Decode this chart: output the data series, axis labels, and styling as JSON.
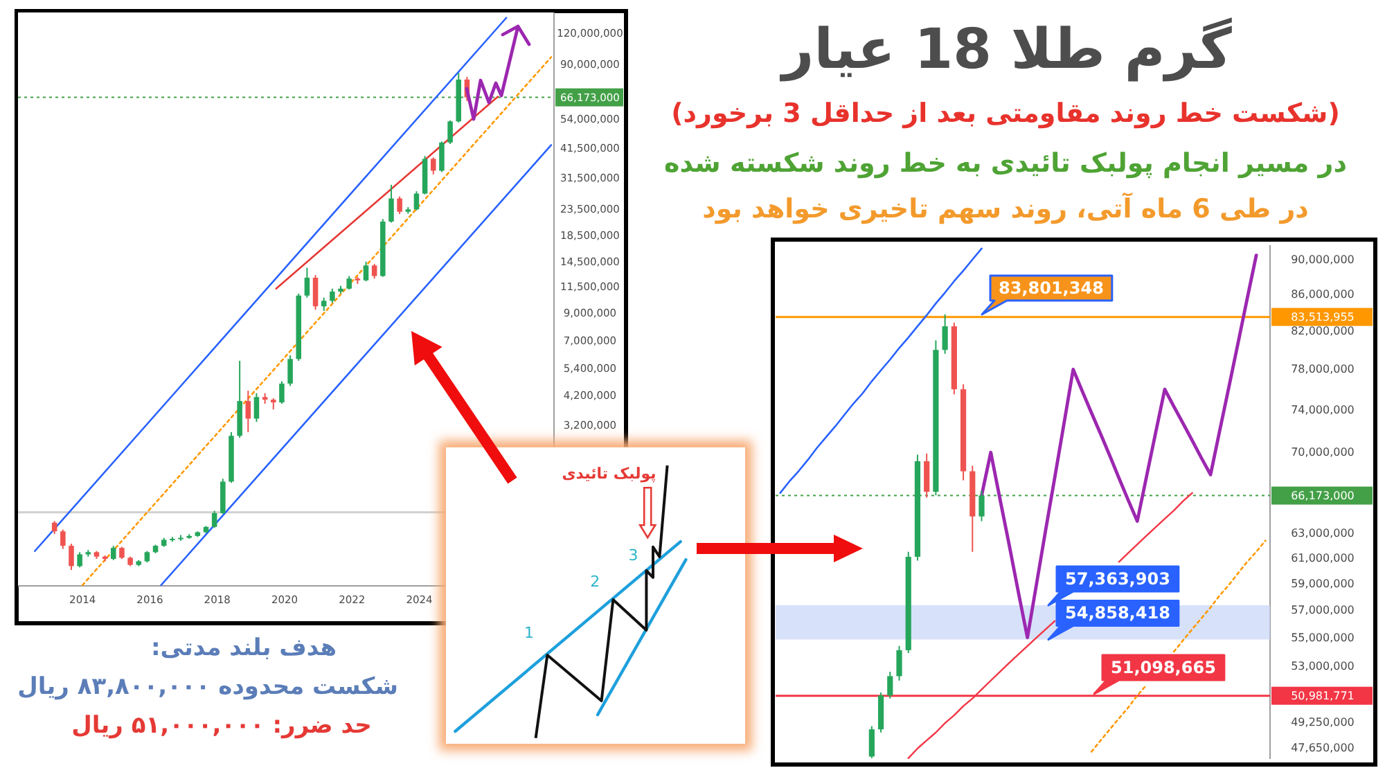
{
  "chart_data": [
    {
      "type": "other",
      "title": "گرم طلا 18 عیار",
      "subtitle": "(شکست خط روند مقاومتی بعد از حداقل 3 برخورد)",
      "annotations": [
        "در مسیر انجام پولبک تائیدی به خط روند شکسته شده",
        "در طی 6 ماه آتی، روند سهم تاخیری خواهد بود",
        "هدف بلند مدتی:",
        "شکست محدوده ۸۳,۸۰۰,۰۰۰ ریال",
        "حد ضرر: ۵۱,۰۰۰,۰۰۰ ریال"
      ]
    },
    {
      "type": "candlestick",
      "log": true,
      "xlim": [
        "2012-02",
        "2028-01"
      ],
      "ylim": [
        725000,
        145000000
      ],
      "xticks": [
        "2014",
        "2016",
        "2018",
        "2020",
        "2022",
        "2024"
      ],
      "yticks": [
        {
          "value": 3200000,
          "label": "3,200,000"
        },
        {
          "value": 4200000,
          "label": "4,200,000"
        },
        {
          "value": 5400000,
          "label": "5,400,000"
        },
        {
          "value": 7000000,
          "label": "7,000,000"
        },
        {
          "value": 9000000,
          "label": "9,000,000"
        },
        {
          "value": 11500000,
          "label": "11,500,000"
        },
        {
          "value": 14500000,
          "label": "14,500,000"
        },
        {
          "value": 18500000,
          "label": "18,500,000"
        },
        {
          "value": 23500000,
          "label": "23,500,000"
        },
        {
          "value": 31500000,
          "label": "31,500,000"
        },
        {
          "value": 41500000,
          "label": "41,500,000"
        },
        {
          "value": 54000000,
          "label": "54,000,000"
        },
        {
          "value": 90000000,
          "label": "90,000,000"
        },
        {
          "value": 120000000,
          "label": "120,000,000"
        }
      ],
      "x": [
        "2013-03",
        "2013-06",
        "2013-09",
        "2013-12",
        "2014-03",
        "2014-06",
        "2014-09",
        "2014-12",
        "2015-03",
        "2015-06",
        "2015-09",
        "2015-12",
        "2016-03",
        "2016-06",
        "2016-09",
        "2016-12",
        "2017-03",
        "2017-06",
        "2017-09",
        "2017-12",
        "2018-03",
        "2018-06",
        "2018-09",
        "2018-12",
        "2019-03",
        "2019-06",
        "2019-09",
        "2019-12",
        "2020-03",
        "2020-06",
        "2020-09",
        "2020-12",
        "2021-03",
        "2021-06",
        "2021-09",
        "2021-12",
        "2022-03",
        "2022-06",
        "2022-09",
        "2022-12",
        "2023-03",
        "2023-06",
        "2023-09",
        "2023-12",
        "2024-03",
        "2024-06",
        "2024-09",
        "2024-12",
        "2025-03",
        "2025-06"
      ],
      "ohlc": [
        [
          1300000,
          1320000,
          1170000,
          1200000
        ],
        [
          1200000,
          1220000,
          1020000,
          1050000
        ],
        [
          1050000,
          1070000,
          840000,
          870000
        ],
        [
          870000,
          990000,
          860000,
          970000
        ],
        [
          970000,
          1010000,
          950000,
          990000
        ],
        [
          990000,
          1000000,
          930000,
          950000
        ],
        [
          950000,
          960000,
          910000,
          930000
        ],
        [
          930000,
          1050000,
          920000,
          1030000
        ],
        [
          1030000,
          1040000,
          930000,
          940000
        ],
        [
          940000,
          950000,
          870000,
          880000
        ],
        [
          880000,
          920000,
          870000,
          910000
        ],
        [
          910000,
          1000000,
          900000,
          990000
        ],
        [
          990000,
          1060000,
          980000,
          1050000
        ],
        [
          1050000,
          1130000,
          1040000,
          1110000
        ],
        [
          1110000,
          1140000,
          1090000,
          1120000
        ],
        [
          1120000,
          1160000,
          1100000,
          1130000
        ],
        [
          1130000,
          1170000,
          1120000,
          1150000
        ],
        [
          1150000,
          1200000,
          1140000,
          1190000
        ],
        [
          1190000,
          1260000,
          1180000,
          1250000
        ],
        [
          1250000,
          1450000,
          1240000,
          1420000
        ],
        [
          1420000,
          1950000,
          1410000,
          1900000
        ],
        [
          1900000,
          3000000,
          1880000,
          2900000
        ],
        [
          2900000,
          5800000,
          2850000,
          4000000
        ],
        [
          4000000,
          4400000,
          3000000,
          3400000
        ],
        [
          3400000,
          4300000,
          3300000,
          4150000
        ],
        [
          4150000,
          4300000,
          3900000,
          4050000
        ],
        [
          4050000,
          4100000,
          3700000,
          3950000
        ],
        [
          3950000,
          4800000,
          3900000,
          4700000
        ],
        [
          4700000,
          6100000,
          4600000,
          5900000
        ],
        [
          5900000,
          10800000,
          5800000,
          10600000
        ],
        [
          10600000,
          13700000,
          10400000,
          12500000
        ],
        [
          12500000,
          12800000,
          9300000,
          9600000
        ],
        [
          9600000,
          10400000,
          9200000,
          10100000
        ],
        [
          10100000,
          11300000,
          9900000,
          11000000
        ],
        [
          11000000,
          11600000,
          10800000,
          11300000
        ],
        [
          11300000,
          12700000,
          11200000,
          12400000
        ],
        [
          12400000,
          12600000,
          11800000,
          12200000
        ],
        [
          12200000,
          14500000,
          12100000,
          14000000
        ],
        [
          14000000,
          14200000,
          12400000,
          12700000
        ],
        [
          12700000,
          21500000,
          12600000,
          21000000
        ],
        [
          21000000,
          29500000,
          20800000,
          26000000
        ],
        [
          26000000,
          26500000,
          22500000,
          23000000
        ],
        [
          23000000,
          24000000,
          22600000,
          23500000
        ],
        [
          23500000,
          27800000,
          23300000,
          27200000
        ],
        [
          27200000,
          38500000,
          27000000,
          37500000
        ],
        [
          37500000,
          38000000,
          32500000,
          33600000
        ],
        [
          33600000,
          44000000,
          33200000,
          43600000
        ],
        [
          43600000,
          53500000,
          43000000,
          53000000
        ],
        [
          53000000,
          83000000,
          52500000,
          78000000
        ],
        [
          78000000,
          80000000,
          64000000,
          66173000
        ]
      ],
      "series": [
        {
          "type": "line",
          "color": "#2962ff",
          "x": [
            "2012-08",
            "2026-08"
          ],
          "values": [
            1000000,
            138000000
          ]
        },
        {
          "type": "line",
          "color": "#2962ff",
          "x": [
            "2016-05",
            "2027-12"
          ],
          "values": [
            730000,
            42600000
          ]
        },
        {
          "type": "line",
          "color": "#ff9800",
          "line_style": "dotted",
          "x": [
            "2014-01",
            "2027-12"
          ],
          "values": [
            730000,
            96000000
          ]
        },
        {
          "type": "line",
          "color": "#e53935",
          "x": [
            "2019-10",
            "2026-05"
          ],
          "values": [
            11300000,
            66600000
          ]
        }
      ],
      "ref_lines": [
        {
          "axis": "y",
          "value": 66173000,
          "label": "66,173,000",
          "color": "#43a047",
          "line_style": "dotted"
        },
        {
          "axis": "y",
          "value": 1430000,
          "color": "#d0d0d0"
        }
      ]
    },
    {
      "type": "other",
      "annotations": [
        "1",
        "2",
        "3",
        "پولبک تائیدی"
      ]
    },
    {
      "type": "candlestick",
      "log": true,
      "tick_labels": "y",
      "ylim": [
        46950000,
        91700000
      ],
      "categories": [
        null,
        null,
        null,
        null,
        null,
        null,
        null,
        null,
        null,
        null,
        null,
        null,
        null,
        null,
        null,
        null,
        null,
        null,
        null,
        null,
        null,
        null,
        null,
        null,
        null,
        null,
        null,
        null,
        null,
        null,
        null,
        null,
        null,
        null,
        null,
        null,
        null,
        null,
        null,
        null,
        null,
        null,
        null,
        null,
        null,
        null,
        null,
        null,
        null,
        null,
        null,
        null,
        null,
        null
      ],
      "yticks": [
        {
          "value": 47650000,
          "label": "47,650,000"
        },
        {
          "value": 49250000,
          "label": "49,250,000"
        },
        {
          "value": 53000000,
          "label": "53,000,000"
        },
        {
          "value": 55000000,
          "label": "55,000,000"
        },
        {
          "value": 57000000,
          "label": "57,000,000"
        },
        {
          "value": 59000000,
          "label": "59,000,000"
        },
        {
          "value": 61000000,
          "label": "61,000,000"
        },
        {
          "value": 63000000,
          "label": "63,000,000"
        },
        {
          "value": 70000000,
          "label": "70,000,000"
        },
        {
          "value": 74000000,
          "label": "74,000,000"
        },
        {
          "value": 78000000,
          "label": "78,000,000"
        },
        {
          "value": 82000000,
          "label": "82,000,000"
        },
        {
          "value": 86000000,
          "label": "86,000,000"
        },
        {
          "value": 90000000,
          "label": "90,000,000"
        }
      ],
      "ohlc": [
        null,
        null,
        null,
        null,
        null,
        null,
        null,
        null,
        null,
        null,
        [
          47100000,
          49000000,
          47000000,
          48800000
        ],
        [
          48800000,
          51200000,
          48600000,
          51000000
        ],
        [
          51000000,
          52600000,
          50800000,
          52300000
        ],
        [
          52300000,
          54400000,
          52000000,
          54100000
        ],
        [
          54100000,
          61500000,
          53900000,
          61100000
        ],
        [
          61100000,
          69800000,
          60800000,
          69200000
        ],
        [
          69200000,
          69900000,
          66000000,
          66500000
        ],
        [
          66500000,
          81000000,
          66200000,
          80000000
        ],
        [
          80000000,
          83800000,
          79600000,
          82500000
        ],
        [
          82500000,
          82900000,
          75500000,
          76000000
        ],
        [
          76000000,
          76500000,
          67500000,
          68300000
        ],
        [
          68300000,
          68800000,
          61500000,
          64400000
        ],
        [
          64400000,
          66600000,
          64000000,
          66173000
        ],
        null,
        null,
        null,
        null,
        null,
        null,
        null,
        null,
        null,
        null,
        null,
        null,
        null,
        null,
        null,
        null,
        null,
        null,
        null,
        null,
        null,
        null,
        null,
        null,
        null,
        null,
        null,
        null,
        null,
        null,
        null
      ],
      "series": [
        {
          "type": "line",
          "color": "#2962ff",
          "values": [
            66400000,
            67400000,
            68300000,
            69300000,
            70400000,
            71400000,
            72400000,
            73500000,
            74600000,
            75600000,
            76800000,
            77900000,
            79000000,
            80200000,
            81300000,
            82500000,
            83700000,
            85000000,
            86200000,
            87500000,
            88700000,
            90000000,
            91300000,
            null,
            null,
            null,
            null,
            null,
            null,
            null,
            null,
            null,
            null,
            null,
            null,
            null,
            null,
            null,
            null,
            null,
            null,
            null,
            null,
            null,
            null,
            null,
            null,
            null,
            null,
            null,
            null,
            null,
            null,
            null
          ]
        },
        {
          "type": "line",
          "color": "#f23645",
          "values": [
            null,
            null,
            null,
            null,
            null,
            null,
            null,
            null,
            null,
            null,
            null,
            null,
            null,
            null,
            47000000,
            47600000,
            48100000,
            48600000,
            49200000,
            49700000,
            50300000,
            50800000,
            51400000,
            52000000,
            52600000,
            53200000,
            53800000,
            54400000,
            55000000,
            55600000,
            56200000,
            null,
            null,
            null,
            null,
            null,
            null,
            60700000,
            61400000,
            62100000,
            62800000,
            63500000,
            64200000,
            64900000,
            65700000,
            66400000,
            null,
            null,
            null,
            null,
            null,
            null,
            null,
            null
          ]
        },
        {
          "type": "line",
          "color": "#ff9800",
          "line_style": "dotted",
          "values": [
            null,
            null,
            null,
            null,
            null,
            null,
            null,
            null,
            null,
            null,
            null,
            null,
            null,
            null,
            null,
            null,
            null,
            null,
            null,
            null,
            null,
            null,
            null,
            null,
            null,
            null,
            null,
            null,
            null,
            null,
            null,
            null,
            null,
            null,
            47400000,
            48100000,
            48800000,
            49500000,
            50200000,
            51000000,
            51700000,
            null,
            null,
            54000000,
            54800000,
            55600000,
            56400000,
            57200000,
            58100000,
            58900000,
            59800000,
            60700000,
            61500000,
            62400000
          ]
        },
        {
          "type": "line",
          "color": "#9c27b0",
          "values": [
            null,
            null,
            null,
            null,
            null,
            null,
            null,
            null,
            null,
            null,
            null,
            null,
            null,
            null,
            null,
            null,
            null,
            null,
            null,
            null,
            null,
            null,
            66173000,
            70000000,
            65900000,
            62100000,
            58400000,
            55000000,
            59000000,
            63300000,
            67800000,
            72700000,
            78000000,
            75800000,
            73700000,
            71700000,
            69700000,
            67700000,
            65800000,
            64000000,
            67800000,
            71800000,
            76000000,
            74300000,
            72700000,
            71100000,
            69500000,
            68000000,
            72000000,
            76200000,
            80700000,
            85500000,
            90500000,
            null
          ]
        }
      ],
      "ref_lines": [
        {
          "axis": "y",
          "value": 83513955,
          "label": "83,513,955",
          "color": "#ff9800"
        },
        {
          "axis": "y",
          "value": 66173000,
          "label": "66,173,000",
          "color": "#43a047",
          "line_style": "dotted"
        },
        {
          "axis": "y",
          "value": 50981771,
          "label": "50,981,771",
          "color": "#f23645"
        }
      ],
      "bands": [
        {
          "axis": "y",
          "from": 54858418,
          "to": 57363903,
          "color": "#c9d7f7"
        }
      ],
      "annotations": [
        "83,801,348",
        {
          "text": "57,363,903",
          "y": 57363903
        },
        {
          "text": "54,858,418",
          "y": 54858418
        },
        "51,098,665"
      ]
    }
  ]
}
